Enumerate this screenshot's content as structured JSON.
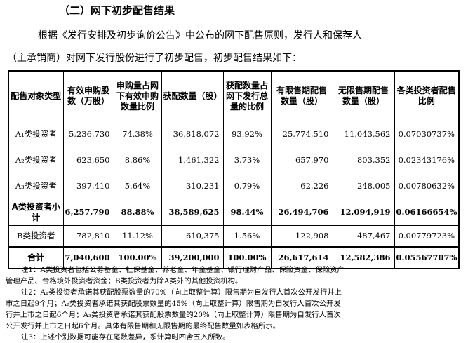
{
  "heading": "（二）网下初步配售结果",
  "intro": {
    "line1": "根据《发行安排及初步询价公告》中公布的网下配售原则，发行人和保荐人",
    "line2": "（主承销商）对网下发行股份进行了初步配售，初步配售结果如下："
  },
  "table": {
    "headers": [
      "配售对象类型",
      "有效申购股数（万股）",
      "申购量占网下有效申购数量比例",
      "获配数量（股）",
      "获配数量占网下发行总量的比例",
      "有限售期配售数量（股）",
      "无限售期配售数量（股）",
      "各类投资者配售比例"
    ],
    "rows": [
      {
        "type": "A₁类投资者",
        "shares": "5,236,730",
        "apply_ratio": "74.38%",
        "allotted": "36,818,072",
        "allot_ratio": "93.92%",
        "restricted": "25,774,510",
        "unrestricted": "11,043,562",
        "rate": "0.07030737%"
      },
      {
        "type": "A₂类投资者",
        "shares": "623,650",
        "apply_ratio": "8.86%",
        "allotted": "1,461,322",
        "allot_ratio": "3.73%",
        "restricted": "657,970",
        "unrestricted": "803,352",
        "rate": "0.02343176%"
      },
      {
        "type": "A₃类投资者",
        "shares": "397,410",
        "apply_ratio": "5.64%",
        "allotted": "310,231",
        "allot_ratio": "0.79%",
        "restricted": "62,226",
        "unrestricted": "248,005",
        "rate": "0.00780632%"
      },
      {
        "type": "A类投资者小计",
        "shares": "6,257,790",
        "apply_ratio": "88.88%",
        "allotted": "38,589,625",
        "allot_ratio": "98.44%",
        "restricted": "26,494,706",
        "unrestricted": "12,094,919",
        "rate": "0.06166654%"
      },
      {
        "type": "B类投资者",
        "shares": "782,810",
        "apply_ratio": "11.12%",
        "allotted": "610,375",
        "allot_ratio": "1.56%",
        "restricted": "122,908",
        "unrestricted": "487,467",
        "rate": "0.00779723%"
      },
      {
        "type": "合计",
        "shares": "7,040,600",
        "apply_ratio": "100.00%",
        "allotted": "39,200,000",
        "allot_ratio": "100.00%",
        "restricted": "26,617,614",
        "unrestricted": "12,582,386",
        "rate": "0.05567707%"
      }
    ]
  },
  "notes": {
    "n1a": "注1：A类投资者包括公募基金、社保基金、养老金、年金基金、银行理财产品、保险资金、保险资产",
    "n1b": "管理产品、合格境外投资者资金；B类投资者为除A类外的其他投资机构。",
    "n2a": "注2：A₁类投资者承诺其获配股票数量的70%（向上取整计算）限售期为自发行人首次公开发行并上",
    "n2b": "市之日起9个月；A₂类投资者承诺其获配股票数量的45%（向上取整计算）限售期为自发行人首次公开发",
    "n2c": "行并上市之日起6个月；A₃类投资者承诺其获配股票数量的20%（向上取整计算）限售期为自发行人首次",
    "n2d": "公开发行并上市之日起6个月。具体有限售期和无限售期的最终配售数量如表格所示。",
    "n3": "注3：上述个别数据可能存在尾数差异，系计算时四舍五入所致。"
  }
}
